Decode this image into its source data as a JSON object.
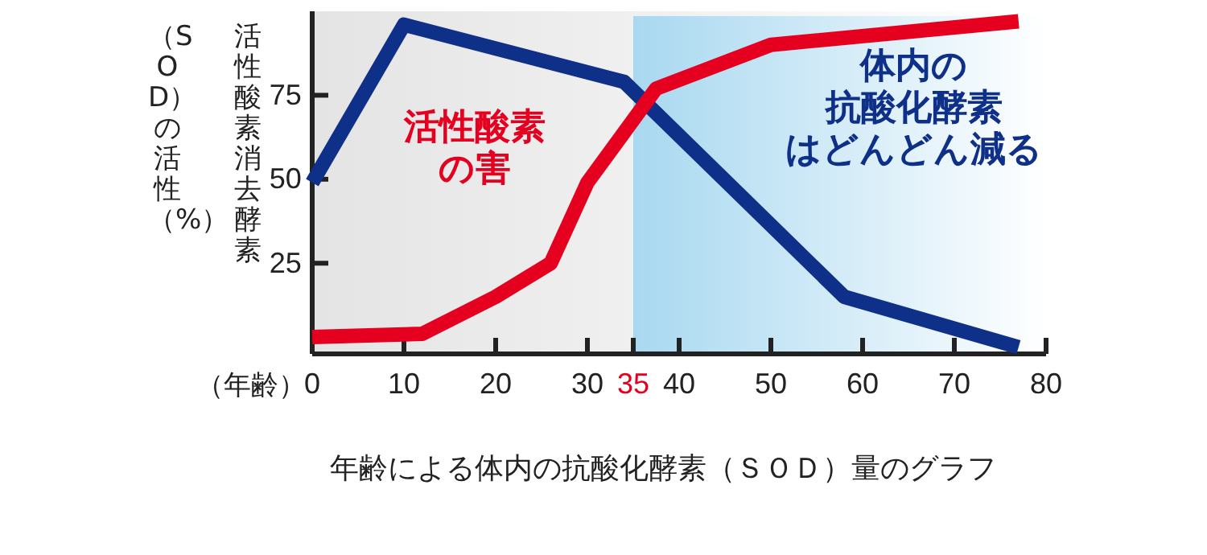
{
  "chart_data": {
    "type": "line",
    "xlabel": "（年齢）",
    "ylabel": "活性酸素消去酵素（SOD）の活性（%）",
    "xlim": [
      0,
      80
    ],
    "xticks": [
      0,
      10,
      20,
      30,
      35,
      40,
      50,
      60,
      70,
      80
    ],
    "ylim": [
      -2,
      100
    ],
    "yticks": [
      25,
      50,
      75
    ],
    "series": [
      {
        "name": "体内の抗酸化酵素はどんどん減る",
        "color": "#0f3088",
        "x": [
          0,
          10,
          34,
          58,
          77
        ],
        "values": [
          49,
          96,
          79,
          15,
          0
        ]
      },
      {
        "name": "活性酸素の害",
        "color": "#e60020",
        "x": [
          0,
          12,
          20,
          26,
          30,
          37.5,
          50,
          77
        ],
        "values": [
          3,
          4,
          15,
          25,
          49,
          77,
          90,
          97
        ]
      }
    ],
    "bands": [
      {
        "axis": "x",
        "from": 35,
        "to": 80,
        "color": "#a8d8f0"
      }
    ],
    "grid": false,
    "annotations": [
      "年齢による体内の抗酸化酵素（ＳＯＤ）量のグラフ"
    ]
  }
}
